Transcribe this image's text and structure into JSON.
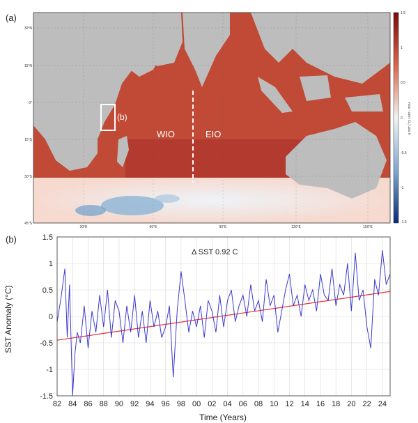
{
  "panel_a": {
    "label": "(a)",
    "region_labels": {
      "box": "(b)",
      "west": "WIO",
      "east": "EIO"
    },
    "lat_ticks": [
      "30°N",
      "15°N",
      "0°",
      "15°S",
      "30°S",
      "45°S"
    ],
    "lon_ticks": [
      "30°E",
      "60°E",
      "90°E",
      "120°E",
      "150°E"
    ],
    "colorbar": {
      "ticks": [
        "1.5",
        "1",
        "0.5",
        "0",
        "-0.5",
        "-1",
        "-1.5"
      ],
      "label": "Δ SST (°C) 1982 - 2024",
      "colors": {
        "max": "#7a0a0a",
        "zero": "#f4f4f4",
        "min": "#0a2a78"
      }
    },
    "colors": {
      "land": "#bdbdbd",
      "ocean_warm": "#c8523a",
      "ocean_deep": "#a32a22",
      "cool_patch": "#8cb4d6",
      "divider": "#ffffff"
    }
  },
  "panel_b": {
    "label": "(b)",
    "annotation": "Δ SST  0.92  C",
    "colors": {
      "series": "#3a3acc",
      "trend": "#e83030",
      "grid": "#d8d8d8"
    }
  },
  "chart_data": {
    "type": "line",
    "xlabel": "Time (Years)",
    "ylabel": "SST Anomaly (°C)",
    "xlim": [
      1982,
      2025
    ],
    "ylim": [
      -1.5,
      1.5
    ],
    "x_tick_labels": [
      "82",
      "84",
      "86",
      "88",
      "90",
      "92",
      "94",
      "96",
      "98",
      "00",
      "02",
      "04",
      "06",
      "08",
      "10",
      "12",
      "14",
      "16",
      "18",
      "20",
      "22",
      "24"
    ],
    "y_tick_labels": [
      "1.5",
      "1",
      "0.5",
      "0",
      "-0.5",
      "-1",
      "-1.5"
    ],
    "grid": true,
    "trend": {
      "x": [
        1982,
        2025
      ],
      "y": [
        -0.45,
        0.47
      ]
    },
    "series": [
      {
        "x": [
          1982,
          1982.5,
          1983,
          1983.3,
          1983.6,
          1984,
          1984.3,
          1984.6,
          1985,
          1985.5,
          1986,
          1986.5,
          1987,
          1987.5,
          1988,
          1988.5,
          1989,
          1989.5,
          1990,
          1990.5,
          1991,
          1991.5,
          1992,
          1992.5,
          1993,
          1993.5,
          1994,
          1994.5,
          1995,
          1995.5,
          1996,
          1996.5,
          1997,
          1997.5,
          1998,
          1998.5,
          1999,
          1999.5,
          2000,
          2000.5,
          2001,
          2001.5,
          2002,
          2002.5,
          2003,
          2003.5,
          2004,
          2004.5,
          2005,
          2005.5,
          2006,
          2006.5,
          2007,
          2007.5,
          2008,
          2008.5,
          2009,
          2009.5,
          2010,
          2010.5,
          2011,
          2011.5,
          2012,
          2012.5,
          2013,
          2013.5,
          2014,
          2014.5,
          2015,
          2015.5,
          2016,
          2016.5,
          2017,
          2017.5,
          2018,
          2018.5,
          2019,
          2019.5,
          2020,
          2020.5,
          2021,
          2021.5,
          2022,
          2022.5,
          2023,
          2023.5,
          2024,
          2024.5,
          2025
        ],
        "y": [
          -0.1,
          0.35,
          0.9,
          -0.4,
          0.6,
          -1.5,
          -0.7,
          -0.3,
          -0.5,
          0.2,
          -0.6,
          0.1,
          -0.3,
          0.4,
          -0.2,
          0.5,
          -0.4,
          0.3,
          0.1,
          -0.5,
          0.2,
          -0.3,
          0.4,
          -0.4,
          0.1,
          -0.5,
          0.3,
          -0.2,
          0.1,
          -0.4,
          -0.2,
          0.2,
          -1.15,
          0.1,
          0.85,
          0.3,
          -0.3,
          0.1,
          -0.2,
          0.2,
          -0.4,
          0.3,
          0.1,
          -0.3,
          0.4,
          -0.2,
          0.3,
          0.5,
          -0.1,
          0.2,
          0.4,
          0.0,
          0.6,
          0.1,
          0.3,
          -0.1,
          0.7,
          0.2,
          0.4,
          -0.3,
          0.1,
          0.5,
          0.8,
          0.2,
          0.4,
          0.0,
          0.6,
          0.3,
          0.5,
          0.1,
          0.8,
          0.4,
          0.3,
          0.9,
          0.2,
          0.6,
          0.4,
          1.0,
          0.1,
          1.2,
          0.3,
          0.5,
          -0.2,
          -0.6,
          0.7,
          0.4,
          1.25,
          0.6,
          0.8
        ]
      }
    ]
  }
}
